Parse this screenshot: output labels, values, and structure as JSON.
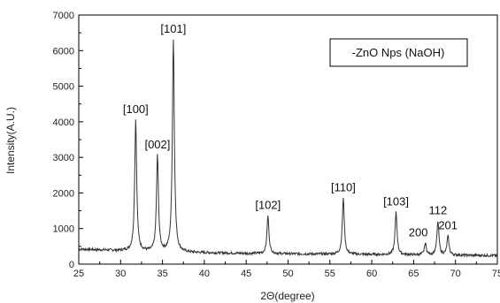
{
  "chart_data": {
    "type": "line",
    "xlabel": "2Θ(degree)",
    "ylabel": "Intensity(A.U.)",
    "xlim": [
      25,
      75
    ],
    "ylim": [
      0,
      7000
    ],
    "x_ticks": [
      25,
      30,
      35,
      40,
      45,
      50,
      55,
      60,
      65,
      70,
      75
    ],
    "y_ticks": [
      0,
      1000,
      2000,
      3000,
      4000,
      5000,
      6000,
      7000
    ],
    "grid": false,
    "legend": {
      "text": "-ZnO Nps (NaOH)",
      "placement": "top-right",
      "boxed": true
    },
    "series": [
      {
        "baseline": [
          [
            25,
            420
          ],
          [
            30,
            380
          ],
          [
            35,
            330
          ],
          [
            40,
            320
          ],
          [
            45,
            300
          ],
          [
            50,
            290
          ],
          [
            55,
            280
          ],
          [
            60,
            270
          ],
          [
            65,
            260
          ],
          [
            70,
            250
          ],
          [
            75,
            240
          ]
        ],
        "peaks": [
          {
            "x": 31.8,
            "y": 4050,
            "label": "[100]"
          },
          {
            "x": 34.4,
            "y": 3050,
            "label": "[002]"
          },
          {
            "x": 36.3,
            "y": 6300,
            "label": "[101]"
          },
          {
            "x": 47.6,
            "y": 1350,
            "label": "[102]"
          },
          {
            "x": 56.6,
            "y": 1850,
            "label": "[110]"
          },
          {
            "x": 62.9,
            "y": 1450,
            "label": "[103]"
          },
          {
            "x": 66.4,
            "y": 580,
            "label": "200"
          },
          {
            "x": 67.9,
            "y": 1200,
            "label": "112"
          },
          {
            "x": 69.1,
            "y": 780,
            "label": "201"
          }
        ]
      }
    ]
  }
}
